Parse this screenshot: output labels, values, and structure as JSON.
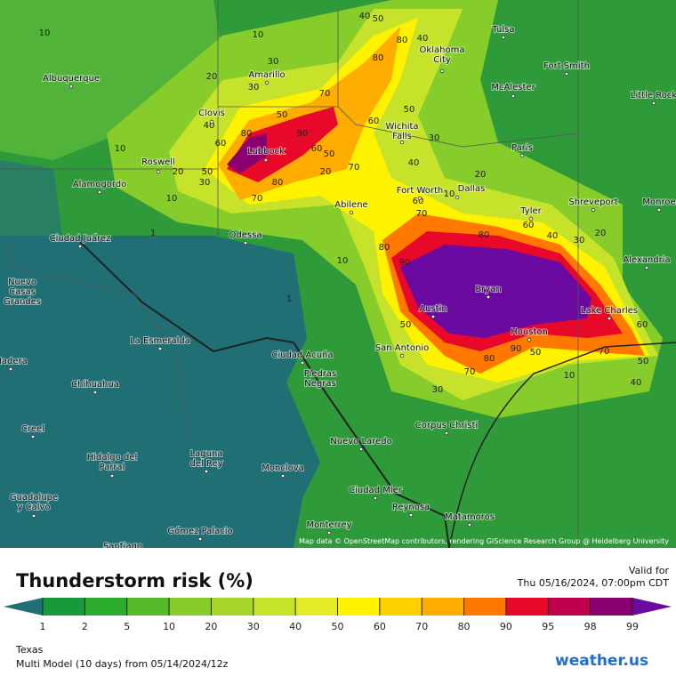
{
  "map": {
    "cities": [
      {
        "name": [
          "Tulsa"
        ]
      },
      {
        "name": [
          "Oklahoma",
          "City"
        ]
      },
      {
        "name": [
          "Fort Smith"
        ]
      },
      {
        "name": [
          "McAlester"
        ]
      },
      {
        "name": [
          "Little Rock"
        ]
      },
      {
        "name": [
          "Amarillo"
        ]
      },
      {
        "name": [
          "Albuquerque"
        ]
      },
      {
        "name": [
          "Clovis"
        ]
      },
      {
        "name": [
          "Roswell"
        ]
      },
      {
        "name": [
          "Lubbock"
        ]
      },
      {
        "name": [
          "Wichita",
          "Falls"
        ]
      },
      {
        "name": [
          "Paris"
        ]
      },
      {
        "name": [
          "Alamogordo"
        ]
      },
      {
        "name": [
          "Fort Worth"
        ]
      },
      {
        "name": [
          "Dallas"
        ]
      },
      {
        "name": [
          "Abilene"
        ]
      },
      {
        "name": [
          "Tyler"
        ]
      },
      {
        "name": [
          "Shreveport"
        ]
      },
      {
        "name": [
          "Monroe"
        ]
      },
      {
        "name": [
          "Ciudad Juárez"
        ]
      },
      {
        "name": [
          "Odessa"
        ]
      },
      {
        "name": [
          "Alexandria"
        ]
      },
      {
        "name": [
          "Bryan"
        ]
      },
      {
        "name": [
          "Nuevo",
          "Casas",
          "Grandes"
        ]
      },
      {
        "name": [
          "Austin"
        ]
      },
      {
        "name": [
          "Lake Charles"
        ]
      },
      {
        "name": [
          "Houston"
        ]
      },
      {
        "name": [
          "La Esmeralda"
        ]
      },
      {
        "name": [
          "San Antonio"
        ]
      },
      {
        "name": [
          "Ciudad Acuña"
        ]
      },
      {
        "name": [
          "Piedras",
          "Negras"
        ]
      },
      {
        "name": [
          "Madera"
        ]
      },
      {
        "name": [
          "Chihuahua"
        ]
      },
      {
        "name": [
          "Corpus Christi"
        ]
      },
      {
        "name": [
          "Creel"
        ]
      },
      {
        "name": [
          "Nuevo Laredo"
        ]
      },
      {
        "name": [
          "Hidalgo del",
          "Parral"
        ]
      },
      {
        "name": [
          "Laguna",
          "del Rey"
        ]
      },
      {
        "name": [
          "Monclova"
        ]
      },
      {
        "name": [
          "Ciudad Mier"
        ]
      },
      {
        "name": [
          "Guadalupe",
          "y Calvo"
        ]
      },
      {
        "name": [
          "Reynosa"
        ]
      },
      {
        "name": [
          "Matamoros"
        ]
      },
      {
        "name": [
          "Gómez Palacio"
        ]
      },
      {
        "name": [
          "Monterrey"
        ]
      },
      {
        "name": [
          "Santiago"
        ]
      }
    ],
    "contour_labels": [
      10,
      40,
      50,
      80,
      40,
      80,
      30,
      30,
      20,
      70,
      50,
      60,
      50,
      40,
      80,
      90,
      60,
      50,
      70,
      60,
      50,
      30,
      20,
      10,
      10,
      80,
      70,
      20,
      40,
      30,
      20,
      10,
      60,
      70,
      80,
      90,
      80,
      60,
      40,
      30,
      20,
      10,
      50,
      70,
      80,
      90,
      50,
      70,
      50,
      40,
      10,
      30,
      60,
      10,
      1,
      1
    ],
    "attribution": "Map data © OpenStreetMap contributors, rendering GIScience Research Group @ Heidelberg University"
  },
  "legend": {
    "title": "Thunderstorm risk (%)",
    "valid_label": "Valid for",
    "valid_time": "Thu 05/16/2024, 07:00pm CDT",
    "ticks": [
      1,
      2,
      5,
      10,
      20,
      30,
      40,
      50,
      60,
      70,
      80,
      90,
      95,
      98,
      99
    ],
    "colors": [
      "#1f6f74",
      "#169a3c",
      "#2aab2c",
      "#55bb2a",
      "#86cc2a",
      "#a6d62a",
      "#c6e22a",
      "#e4ec28",
      "#fff200",
      "#ffd000",
      "#ffac00",
      "#ff7800",
      "#e8082a",
      "#c0004c",
      "#8a0070",
      "#6a0aa0"
    ]
  },
  "footer": {
    "region": "Texas",
    "model": "Multi Model (10 days) from 05/14/2024/12z",
    "brand": "weather.us"
  }
}
